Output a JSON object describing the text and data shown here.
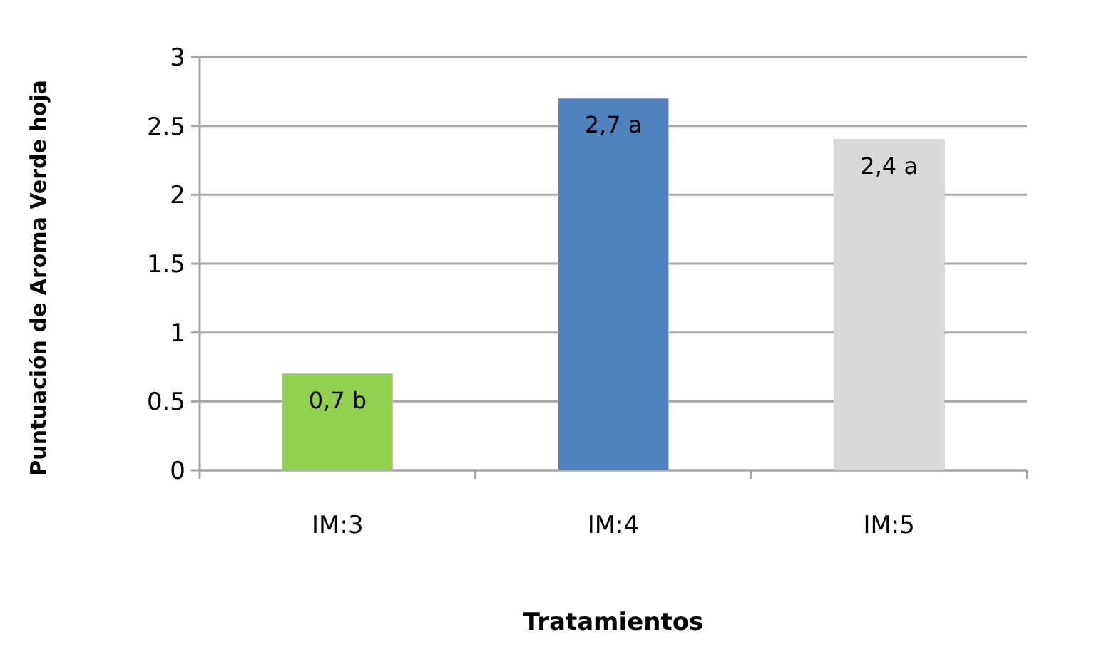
{
  "chart_data": {
    "type": "bar",
    "xlabel": "Tratamientos",
    "ylabel": "Puntuación de Aroma Verde hoja",
    "categories": [
      "IM:3",
      "IM:4",
      "IM:5"
    ],
    "values": [
      0.7,
      2.7,
      2.4
    ],
    "colors": [
      "#92d050",
      "#4f81bd",
      "#d9d9d9"
    ],
    "value_labels": [
      "0,7 b",
      "2,7 a",
      "2,4 a"
    ],
    "ylim": [
      0,
      3
    ],
    "yticks": [
      0,
      0.5,
      1,
      1.5,
      2,
      2.5,
      3
    ],
    "grid": "y"
  }
}
